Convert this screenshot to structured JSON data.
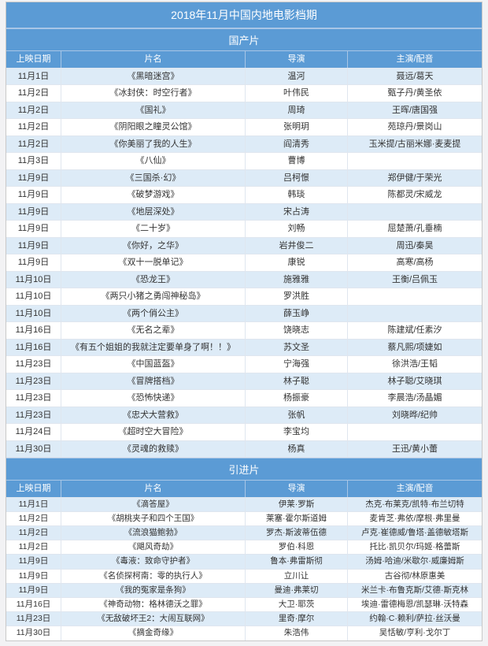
{
  "title": "2018年11月中国内地电影档期",
  "colors": {
    "header_bg": "#5B9BD5",
    "header_fg": "#ffffff",
    "band0": "#DDEBF7",
    "band1": "#ffffff",
    "border": "#dfe6ef"
  },
  "columns": {
    "date": "上映日期",
    "name": "片名",
    "director": "导演",
    "cast": "主演/配音"
  },
  "sections": [
    {
      "label": "国产片",
      "tight": false,
      "rows": [
        {
          "date": "11月1日",
          "name": "《黑暗迷宫》",
          "director": "温河",
          "cast": "聂远/葛天"
        },
        {
          "date": "11月2日",
          "name": "《冰封侠：时空行者》",
          "director": "叶伟民",
          "cast": "甄子丹/黄圣依"
        },
        {
          "date": "11月2日",
          "name": "《国礼》",
          "director": "周琦",
          "cast": "王晖/唐国强"
        },
        {
          "date": "11月2日",
          "name": "《阴阳眼之瞳灵公馆》",
          "director": "张明玥",
          "cast": "苑琼丹/景岗山"
        },
        {
          "date": "11月2日",
          "name": "《你美丽了我的人生》",
          "director": "阎清秀",
          "cast": "玉米提/古丽米娜·麦麦提"
        },
        {
          "date": "11月3日",
          "name": "《八仙》",
          "director": "曹博",
          "cast": ""
        },
        {
          "date": "11月9日",
          "name": "《三国杀·幻》",
          "director": "吕柯憬",
          "cast": "郑伊健/于荣光"
        },
        {
          "date": "11月9日",
          "name": "《破梦游戏》",
          "director": "韩琰",
          "cast": "陈都灵/宋威龙"
        },
        {
          "date": "11月9日",
          "name": "《地层深处》",
          "director": "宋占涛",
          "cast": ""
        },
        {
          "date": "11月9日",
          "name": "《二十岁》",
          "director": "刘畅",
          "cast": "屈楚萧/孔垂楠"
        },
        {
          "date": "11月9日",
          "name": "《你好，之华》",
          "director": "岩井俊二",
          "cast": "周迅/秦昊"
        },
        {
          "date": "11月9日",
          "name": "《双十一脱单记》",
          "director": "康锐",
          "cast": "高寒/高杨"
        },
        {
          "date": "11月10日",
          "name": "《恐龙王》",
          "director": "施雅雅",
          "cast": "王衡/吕佩玉"
        },
        {
          "date": "11月10日",
          "name": "《两只小猪之勇闯神秘岛》",
          "director": "罗洪胜",
          "cast": ""
        },
        {
          "date": "11月10日",
          "name": "《两个俏公主》",
          "director": "薛玉峥",
          "cast": ""
        },
        {
          "date": "11月16日",
          "name": "《无名之辈》",
          "director": "饶晓志",
          "cast": "陈建斌/任素汐"
        },
        {
          "date": "11月16日",
          "name": "《有五个姐姐的我就注定要单身了啊！！》",
          "director": "苏文圣",
          "cast": "蔡凡熙/项婕如"
        },
        {
          "date": "11月23日",
          "name": "《中国蓝盔》",
          "director": "宁海强",
          "cast": "徐洪浩/王韬"
        },
        {
          "date": "11月23日",
          "name": "《冒牌搭档》",
          "director": "林子聪",
          "cast": "林子聪/艾晓琪"
        },
        {
          "date": "11月23日",
          "name": "《恐怖快递》",
          "director": "杨振豪",
          "cast": "李晨浩/汤晶媚"
        },
        {
          "date": "11月23日",
          "name": "《忠犬大营救》",
          "director": "张帆",
          "cast": "刘晓晔/纪帅"
        },
        {
          "date": "11月24日",
          "name": "《超时空大冒险》",
          "director": "李宝均",
          "cast": ""
        },
        {
          "date": "11月30日",
          "name": "《灵魂的救赎》",
          "director": "杨真",
          "cast": "王迅/黄小蕾"
        }
      ]
    },
    {
      "label": "引进片",
      "tight": true,
      "rows": [
        {
          "date": "11月1日",
          "name": "《滴答屋》",
          "director": "伊莱·罗斯",
          "cast": "杰克·布莱克/凯特·布兰切特"
        },
        {
          "date": "11月2日",
          "name": "《胡桃夹子和四个王国》",
          "director": "莱塞·霍尔斯道姆",
          "cast": "麦肯芝·弗依/摩根·弗里曼"
        },
        {
          "date": "11月2日",
          "name": "《流浪猫鲍勃》",
          "director": "罗杰·斯波蒂伍德",
          "cast": "卢克·崔德威/鲁塔·盖德敏塔斯"
        },
        {
          "date": "11月2日",
          "name": "《飓风奇劫》",
          "director": "罗伯·科恩",
          "cast": "托比·凯贝尔/玛姬·格蕾斯"
        },
        {
          "date": "11月9日",
          "name": "《毒液：致命守护者》",
          "director": "鲁本·弗雷斯彻",
          "cast": "汤姆·哈迪/米歇尔·威廉姆斯"
        },
        {
          "date": "11月9日",
          "name": "《名侦探柯南：零的执行人》",
          "director": "立川让",
          "cast": "古谷彻/林原惠美"
        },
        {
          "date": "11月9日",
          "name": "《我的冤家是条狗》",
          "director": "曼迪·弗莱切",
          "cast": "米兰卡·布鲁克斯/艾德·斯克林"
        },
        {
          "date": "11月16日",
          "name": "《神奇动物：格林德沃之罪》",
          "director": "大卫·耶茨",
          "cast": "埃迪·雷德梅恩/凯瑟琳·沃特森"
        },
        {
          "date": "11月23日",
          "name": "《无敌破坏王2：大闹互联网》",
          "director": "里奇·摩尔",
          "cast": "约翰·C·赖利/萨拉·丝沃曼"
        },
        {
          "date": "11月30日",
          "name": "《摘金奇缘》",
          "director": "朱浩伟",
          "cast": "吴恬敏/亨利·戈尔丁"
        }
      ]
    }
  ]
}
